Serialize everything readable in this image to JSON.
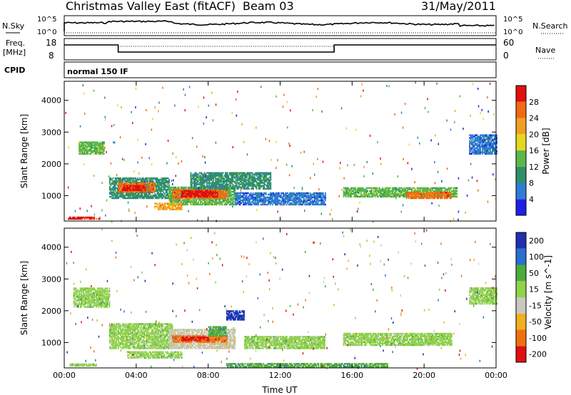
{
  "header": {
    "title": "Christmas Valley East (fitACF)",
    "beam": "Beam 03",
    "date": "31/May/2011"
  },
  "noise_panel": {
    "left_label": "N.Sky",
    "right_label": "N.Search",
    "left_ticks": [
      "10^5",
      "10^0"
    ],
    "right_ticks": [
      "10^5",
      "10^0"
    ]
  },
  "freq_panel": {
    "left_label_line1": "Freq.",
    "left_label_line2": "[MHz]",
    "left_ticks": [
      "18",
      "8"
    ],
    "right_ticks": [
      "60",
      "0"
    ],
    "right_label": "Nave"
  },
  "cpid_panel": {
    "label": "CPID",
    "mode": "normal 150 IF"
  },
  "colors": {
    "power": [
      "#1f1fe6",
      "#2e7dd4",
      "#2f8f66",
      "#5ab84a",
      "#e6d81f",
      "#f0a020",
      "#f06a10",
      "#e01010"
    ],
    "velocity": [
      "#1f2fb0",
      "#2a6fd0",
      "#4cab3c",
      "#8fd34a",
      "#c8c8c0",
      "#f0b020",
      "#f07010",
      "#e01010"
    ]
  },
  "chart_data": [
    {
      "type": "heatmap",
      "quantity": "power",
      "xlabel": "Time UT",
      "ylabel": "Slant Range [km]",
      "x_ticks": [
        "00:00",
        "04:00",
        "08:00",
        "12:00",
        "16:00",
        "20:00",
        "00:00"
      ],
      "xlim_hours": [
        0,
        24
      ],
      "y_ticks": [
        1000,
        2000,
        3000,
        4000
      ],
      "ylim": [
        200,
        4600
      ],
      "colorbar_label": "Power [dB]",
      "colorbar_ticks": [
        4,
        8,
        12,
        16,
        20,
        24,
        28
      ],
      "colorbar_range": [
        0,
        32
      ],
      "regions": [
        {
          "t": [
            0.2,
            2.0
          ],
          "r": [
            250,
            320
          ],
          "level": 7
        },
        {
          "t": [
            0.8,
            2.2
          ],
          "r": [
            2300,
            2700
          ],
          "level": 3
        },
        {
          "t": [
            2.5,
            5.8
          ],
          "r": [
            900,
            1550
          ],
          "level": 2
        },
        {
          "t": [
            3.0,
            5.0
          ],
          "r": [
            1100,
            1400
          ],
          "level": 6
        },
        {
          "t": [
            3.2,
            4.5
          ],
          "r": [
            1150,
            1300
          ],
          "level": 7
        },
        {
          "t": [
            5.8,
            9.5
          ],
          "r": [
            700,
            1250
          ],
          "level": 3
        },
        {
          "t": [
            6.0,
            9.0
          ],
          "r": [
            900,
            1200
          ],
          "level": 6
        },
        {
          "t": [
            6.5,
            8.5
          ],
          "r": [
            950,
            1150
          ],
          "level": 7
        },
        {
          "t": [
            5.0,
            6.5
          ],
          "r": [
            550,
            750
          ],
          "level": 5
        },
        {
          "t": [
            7.0,
            11.5
          ],
          "r": [
            1200,
            1700
          ],
          "level": 2
        },
        {
          "t": [
            9.5,
            14.5
          ],
          "r": [
            700,
            1100
          ],
          "level": 1
        },
        {
          "t": [
            15.5,
            21.8
          ],
          "r": [
            950,
            1250
          ],
          "level": 3
        },
        {
          "t": [
            19.0,
            21.5
          ],
          "r": [
            900,
            1100
          ],
          "level": 6
        },
        {
          "t": [
            22.5,
            24.0
          ],
          "r": [
            2300,
            2900
          ],
          "level": 1
        }
      ]
    },
    {
      "type": "heatmap",
      "quantity": "velocity",
      "xlabel": "Time UT",
      "ylabel": "Slant Range [km]",
      "x_ticks": [
        "00:00",
        "04:00",
        "08:00",
        "12:00",
        "16:00",
        "20:00",
        "00:00"
      ],
      "xlim_hours": [
        0,
        24
      ],
      "y_ticks": [
        1000,
        2000,
        3000,
        4000
      ],
      "ylim": [
        200,
        4600
      ],
      "colorbar_label": "Velocity [m s^-1]",
      "colorbar_ticks": [
        200,
        100,
        50,
        15,
        -15,
        -50,
        -100,
        -200
      ],
      "regions": [
        {
          "t": [
            0.3,
            1.8
          ],
          "r": [
            250,
            320
          ],
          "level": 4
        },
        {
          "t": [
            0.5,
            2.5
          ],
          "r": [
            2100,
            2700
          ],
          "level": 4
        },
        {
          "t": [
            2.5,
            6.0
          ],
          "r": [
            800,
            1600
          ],
          "level": 4
        },
        {
          "t": [
            3.5,
            6.5
          ],
          "r": [
            500,
            700
          ],
          "level": 4
        },
        {
          "t": [
            5.8,
            9.5
          ],
          "r": [
            800,
            1400
          ],
          "level": 3
        },
        {
          "t": [
            6.0,
            9.0
          ],
          "r": [
            1000,
            1200
          ],
          "level": 1
        },
        {
          "t": [
            6.5,
            8.0
          ],
          "r": [
            1050,
            1150
          ],
          "level": 0
        },
        {
          "t": [
            8.0,
            9.0
          ],
          "r": [
            1200,
            1500
          ],
          "level": 5
        },
        {
          "t": [
            9.0,
            10.0
          ],
          "r": [
            1700,
            2000
          ],
          "level": 7
        },
        {
          "t": [
            10.0,
            14.5
          ],
          "r": [
            800,
            1200
          ],
          "level": 4
        },
        {
          "t": [
            15.5,
            21.5
          ],
          "r": [
            900,
            1300
          ],
          "level": 4
        },
        {
          "t": [
            9.0,
            18.0
          ],
          "r": [
            220,
            320
          ],
          "level": 5
        },
        {
          "t": [
            22.5,
            24.0
          ],
          "r": [
            2200,
            2700
          ],
          "level": 4
        }
      ]
    }
  ]
}
